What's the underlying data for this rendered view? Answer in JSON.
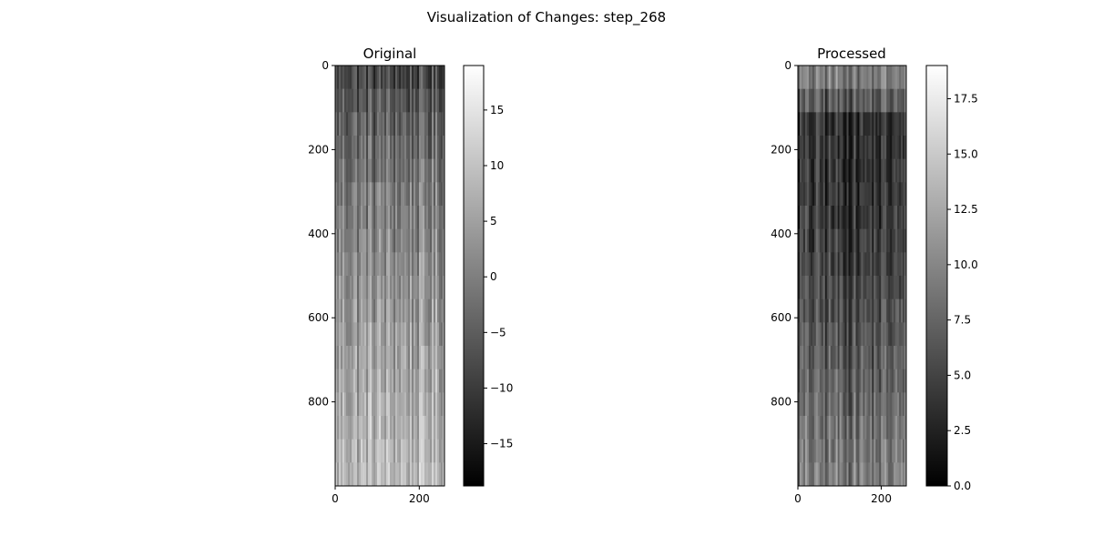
{
  "figure": {
    "title": "Visualization of Changes: step_268"
  },
  "chart_data": [
    {
      "type": "heatmap",
      "title": "Original",
      "colormap": "gray",
      "rows": 1000,
      "cols": 256,
      "x_ticks": [
        0,
        200
      ],
      "y_ticks": [
        0,
        200,
        400,
        600,
        800
      ],
      "xlim": [
        0,
        260
      ],
      "ylim": [
        1000,
        0
      ],
      "colorbar": {
        "range": [
          -18.8,
          19.0
        ],
        "ticks": [
          -15,
          -10,
          -5,
          0,
          5,
          10,
          15
        ],
        "tick_labels": [
          "−15",
          "−10",
          "−5",
          "0",
          "5",
          "10",
          "15"
        ]
      },
      "description_of_values": "values increase with row index: darker (≈−8) near top rows, lighter (≈+10) near bottom rows, strong per-column vertical streaks"
    },
    {
      "type": "heatmap",
      "title": "Processed",
      "colormap": "gray",
      "rows": 1000,
      "cols": 256,
      "x_ticks": [
        0,
        200
      ],
      "y_ticks": [
        0,
        200,
        400,
        600,
        800
      ],
      "xlim": [
        0,
        260
      ],
      "ylim": [
        1000,
        0
      ],
      "colorbar": {
        "range": [
          0.0,
          19.0
        ],
        "ticks": [
          0.0,
          2.5,
          5.0,
          7.5,
          10.0,
          12.5,
          15.0,
          17.5
        ],
        "tick_labels": [
          "0.0",
          "2.5",
          "5.0",
          "7.5",
          "10.0",
          "12.5",
          "15.0",
          "17.5"
        ]
      },
      "description_of_values": "absolute-value-like: light near top rows, darkest around rows 200–400, gradually lighter toward bottom, strong per-column vertical streaks"
    }
  ]
}
